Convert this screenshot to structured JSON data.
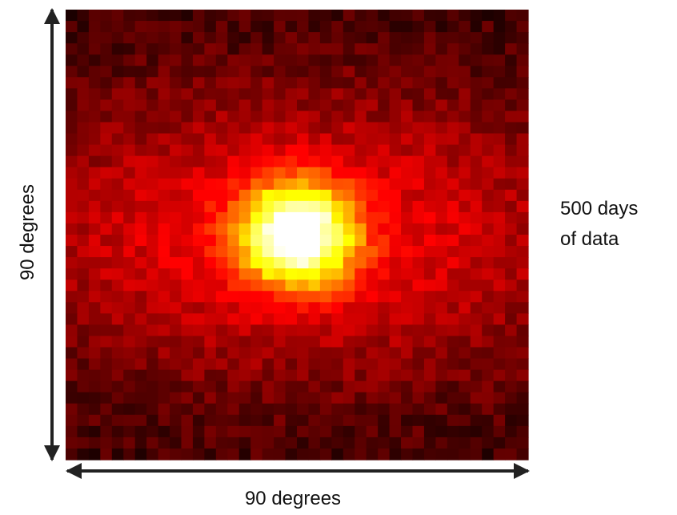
{
  "figure": {
    "height_label": "90 degrees",
    "width_label": "90 degrees",
    "caption": [
      "500 days",
      "of data"
    ]
  }
}
